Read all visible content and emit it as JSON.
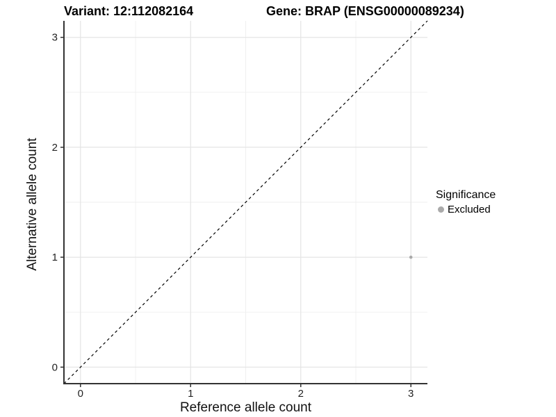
{
  "titles": {
    "variant": "Variant: 12:112082164",
    "gene": "Gene: BRAP (ENSG00000089234)"
  },
  "axes": {
    "x_label": "Reference allele count",
    "y_label": "Alternative allele count"
  },
  "legend": {
    "title": "Significance",
    "items": [
      {
        "label": "Excluded",
        "color": "#aaaaaa"
      }
    ]
  },
  "colors": {
    "background": "#ffffff",
    "grid_major": "#e4e4e4",
    "grid_minor": "#efefef",
    "axis_line": "#333333",
    "tick_label": "#222222",
    "identity_line": "#000000",
    "point": "#aaaaaa"
  },
  "chart_data": {
    "type": "scatter",
    "title_left": "Variant: 12:112082164",
    "title_right": "Gene: BRAP (ENSG00000089234)",
    "xlabel": "Reference allele count",
    "ylabel": "Alternative allele count",
    "xlim": [
      -0.15,
      3.15
    ],
    "ylim": [
      -0.15,
      3.15
    ],
    "x_ticks": [
      0,
      1,
      2,
      3
    ],
    "y_ticks": [
      0,
      1,
      2,
      3
    ],
    "x_minor_ticks": [
      0.5,
      1.5,
      2.5
    ],
    "y_minor_ticks": [
      0.5,
      1.5,
      2.5
    ],
    "grid": true,
    "legend_position": "right",
    "reference_line": {
      "type": "identity y=x",
      "style": "dashed",
      "color": "#000000"
    },
    "series": [
      {
        "name": "Excluded",
        "color": "#aaaaaa",
        "points": [
          {
            "x": 3,
            "y": 1
          }
        ]
      }
    ]
  }
}
